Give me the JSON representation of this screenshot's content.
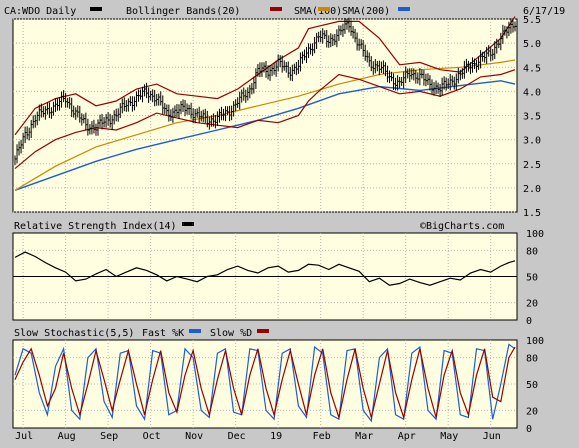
{
  "chart_data": [
    {
      "type": "line",
      "panel": "price",
      "title_parts": [
        {
          "text": "CA:WDO Daily",
          "swatch": "#000000"
        },
        {
          "text": "Bollinger Bands(20)",
          "swatch": "#990000"
        },
        {
          "text": "SMA(100)",
          "swatch": "#cc8800"
        },
        {
          "text": "SMA(200)",
          "swatch": "#1a5fd1"
        }
      ],
      "date_label": "6/17/19",
      "ylim": [
        1.5,
        5.5
      ],
      "yticks": [
        "1.5",
        "2.0",
        "2.5",
        "3.0",
        "3.5",
        "4.0",
        "4.5",
        "5.0",
        "5.5"
      ],
      "xlabels": [
        "Jul",
        "Aug",
        "Sep",
        "Oct",
        "Nov",
        "Dec",
        "19",
        "Feb",
        "Mar",
        "Apr",
        "May",
        "Jun"
      ],
      "xpos": [
        4,
        25,
        46,
        67,
        88,
        109,
        130,
        151,
        172,
        193,
        214,
        235
      ],
      "x_count": 248,
      "price": {
        "name": "CA:WDO Daily",
        "color": "#000000",
        "x": [
          0,
          5,
          10,
          15,
          20,
          25,
          30,
          35,
          40,
          45,
          50,
          55,
          60,
          65,
          70,
          75,
          80,
          85,
          90,
          95,
          100,
          105,
          110,
          115,
          120,
          125,
          130,
          135,
          140,
          145,
          150,
          152,
          155,
          160,
          165,
          170,
          175,
          180,
          185,
          190,
          195,
          200,
          205,
          210,
          215,
          220,
          225,
          230,
          235,
          240,
          244,
          247
        ],
        "values": [
          2.6,
          3.1,
          3.45,
          3.6,
          3.7,
          3.85,
          3.55,
          3.3,
          3.25,
          3.4,
          3.5,
          3.75,
          3.85,
          4.0,
          3.85,
          3.55,
          3.6,
          3.65,
          3.5,
          3.4,
          3.45,
          3.55,
          3.8,
          3.95,
          4.45,
          4.4,
          4.6,
          4.4,
          4.55,
          4.85,
          5.15,
          5.1,
          5.05,
          5.2,
          5.4,
          4.95,
          4.6,
          4.5,
          4.3,
          4.15,
          4.4,
          4.3,
          4.15,
          4.05,
          4.2,
          4.35,
          4.55,
          4.65,
          4.8,
          5.1,
          5.3,
          5.45
        ]
      },
      "bb_upper": {
        "name": "Bollinger Bands(20)",
        "color": "#990000",
        "x": [
          0,
          10,
          20,
          30,
          40,
          50,
          60,
          70,
          80,
          90,
          100,
          110,
          120,
          130,
          140,
          145,
          150,
          160,
          170,
          180,
          190,
          200,
          210,
          220,
          230,
          240,
          247
        ],
        "values": [
          3.1,
          3.65,
          3.85,
          3.95,
          3.7,
          3.8,
          4.05,
          4.15,
          3.95,
          3.9,
          3.85,
          4.05,
          4.35,
          4.65,
          4.9,
          5.3,
          5.35,
          5.45,
          5.45,
          5.1,
          4.55,
          4.6,
          4.45,
          4.4,
          4.75,
          5.1,
          5.55
        ]
      },
      "bb_lower": {
        "name": "Bollinger Bands(20)",
        "color": "#990000",
        "x": [
          0,
          10,
          20,
          30,
          40,
          50,
          60,
          70,
          80,
          90,
          100,
          110,
          120,
          130,
          140,
          145,
          150,
          160,
          170,
          180,
          190,
          200,
          210,
          220,
          230,
          240,
          247
        ],
        "values": [
          2.4,
          2.75,
          3.0,
          3.15,
          3.25,
          3.2,
          3.35,
          3.55,
          3.45,
          3.35,
          3.3,
          3.25,
          3.4,
          3.35,
          3.5,
          3.8,
          4.0,
          4.35,
          4.25,
          4.1,
          3.95,
          4.0,
          3.9,
          4.05,
          4.3,
          4.35,
          4.45
        ]
      },
      "sma100": {
        "name": "SMA(100)",
        "color": "#cc8800",
        "x": [
          0,
          20,
          40,
          60,
          80,
          100,
          120,
          140,
          160,
          180,
          200,
          220,
          240,
          247
        ],
        "values": [
          1.95,
          2.45,
          2.85,
          3.1,
          3.35,
          3.5,
          3.7,
          3.9,
          4.15,
          4.35,
          4.45,
          4.5,
          4.6,
          4.65
        ]
      },
      "sma200": {
        "name": "SMA(200)",
        "color": "#1a5fd1",
        "x": [
          0,
          20,
          40,
          60,
          80,
          100,
          120,
          140,
          160,
          180,
          200,
          220,
          240,
          247
        ],
        "values": [
          1.95,
          2.25,
          2.55,
          2.8,
          3.0,
          3.2,
          3.4,
          3.65,
          3.95,
          4.1,
          4.02,
          4.12,
          4.22,
          4.15
        ]
      }
    },
    {
      "type": "line",
      "panel": "rsi",
      "title_parts": [
        {
          "text": "Relative Strength Index(14)",
          "swatch": "#000000"
        }
      ],
      "watermark": "©BigCharts.com",
      "ylim": [
        0,
        100
      ],
      "yticks": [
        "100",
        "80",
        "50",
        "20",
        "0"
      ],
      "ytick_values": [
        100,
        80,
        50,
        20,
        0
      ],
      "reference_line": 50,
      "series": [
        {
          "name": "Relative Strength Index(14)",
          "color": "#000000",
          "x": [
            0,
            5,
            10,
            15,
            20,
            25,
            30,
            35,
            40,
            45,
            50,
            55,
            60,
            65,
            70,
            75,
            80,
            85,
            90,
            95,
            100,
            105,
            110,
            115,
            120,
            125,
            130,
            135,
            140,
            145,
            150,
            155,
            160,
            165,
            170,
            175,
            180,
            185,
            190,
            195,
            200,
            205,
            210,
            215,
            220,
            225,
            230,
            235,
            240,
            244,
            247
          ],
          "values": [
            72,
            78,
            73,
            66,
            60,
            55,
            45,
            47,
            53,
            58,
            50,
            55,
            60,
            57,
            52,
            45,
            50,
            47,
            44,
            50,
            52,
            58,
            62,
            57,
            54,
            60,
            62,
            55,
            57,
            64,
            63,
            58,
            64,
            60,
            56,
            44,
            48,
            40,
            42,
            47,
            43,
            40,
            44,
            48,
            46,
            54,
            58,
            55,
            62,
            66,
            68
          ]
        }
      ]
    },
    {
      "type": "line",
      "panel": "stochastic",
      "title_parts": [
        {
          "text": "Slow Stochastic(5,5)",
          "swatch": null
        },
        {
          "text": "Fast %K",
          "swatch": "#1a5fd1"
        },
        {
          "text": "Slow %D",
          "swatch": "#990000"
        }
      ],
      "ylim": [
        0,
        100
      ],
      "yticks": [
        "100",
        "80",
        "50",
        "20",
        "0"
      ],
      "ytick_values": [
        100,
        80,
        50,
        20,
        0
      ],
      "series": [
        {
          "name": "Fast %K",
          "color": "#1a5fd1",
          "x": [
            0,
            4,
            8,
            12,
            16,
            20,
            24,
            28,
            32,
            36,
            40,
            44,
            48,
            52,
            56,
            60,
            64,
            68,
            72,
            76,
            80,
            84,
            88,
            92,
            96,
            100,
            104,
            108,
            112,
            116,
            120,
            124,
            128,
            132,
            136,
            140,
            144,
            148,
            152,
            156,
            160,
            164,
            168,
            172,
            176,
            180,
            184,
            188,
            192,
            196,
            200,
            204,
            208,
            212,
            216,
            220,
            224,
            228,
            232,
            236,
            240,
            244,
            247
          ],
          "values": [
            60,
            90,
            85,
            40,
            15,
            70,
            90,
            20,
            10,
            80,
            90,
            30,
            12,
            85,
            88,
            25,
            10,
            88,
            85,
            15,
            20,
            90,
            80,
            20,
            12,
            85,
            90,
            18,
            15,
            90,
            88,
            20,
            10,
            85,
            90,
            25,
            12,
            92,
            85,
            15,
            10,
            88,
            90,
            20,
            8,
            80,
            90,
            15,
            10,
            85,
            92,
            20,
            10,
            88,
            85,
            15,
            12,
            90,
            88,
            10,
            50,
            95,
            90
          ]
        },
        {
          "name": "Slow %D",
          "color": "#990000",
          "x": [
            0,
            4,
            8,
            12,
            16,
            20,
            24,
            28,
            32,
            36,
            40,
            44,
            48,
            52,
            56,
            60,
            64,
            68,
            72,
            76,
            80,
            84,
            88,
            92,
            96,
            100,
            104,
            108,
            112,
            116,
            120,
            124,
            128,
            132,
            136,
            140,
            144,
            148,
            152,
            156,
            160,
            164,
            168,
            172,
            176,
            180,
            184,
            188,
            192,
            196,
            200,
            204,
            208,
            212,
            216,
            220,
            224,
            228,
            232,
            236,
            240,
            244,
            247
          ],
          "values": [
            55,
            75,
            90,
            60,
            25,
            45,
            85,
            45,
            15,
            50,
            88,
            55,
            20,
            55,
            88,
            50,
            15,
            55,
            88,
            40,
            18,
            60,
            88,
            45,
            15,
            55,
            88,
            45,
            15,
            60,
            90,
            45,
            15,
            55,
            88,
            50,
            15,
            60,
            90,
            40,
            12,
            55,
            90,
            45,
            12,
            50,
            88,
            40,
            12,
            55,
            90,
            45,
            12,
            60,
            88,
            40,
            15,
            60,
            90,
            35,
            30,
            80,
            92
          ]
        }
      ]
    }
  ]
}
